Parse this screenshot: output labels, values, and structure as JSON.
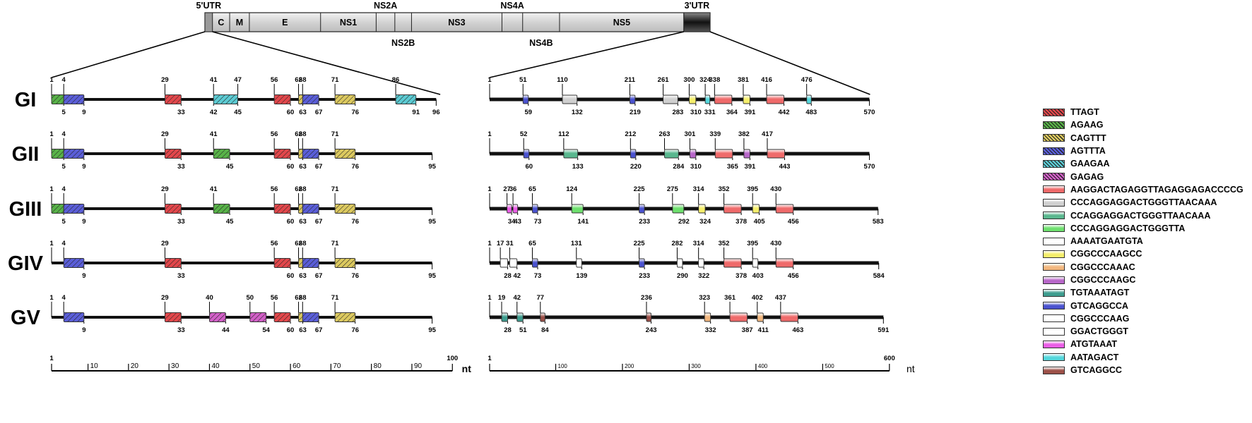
{
  "genome": {
    "utr5_label": "5'UTR",
    "utr3_label": "3'UTR",
    "segments": [
      {
        "name": "C",
        "start": 0.015,
        "end": 0.049
      },
      {
        "name": "M",
        "start": 0.049,
        "end": 0.088
      },
      {
        "name": "E",
        "start": 0.088,
        "end": 0.229
      },
      {
        "name": "NS1",
        "start": 0.229,
        "end": 0.339
      },
      {
        "name": "NS2A",
        "start": 0.339,
        "end": 0.376
      },
      {
        "name": "NS2B",
        "start": 0.376,
        "end": 0.409
      },
      {
        "name": "NS3",
        "start": 0.409,
        "end": 0.588
      },
      {
        "name": "NS4A",
        "start": 0.588,
        "end": 0.629
      },
      {
        "name": "NS4B",
        "start": 0.629,
        "end": 0.702
      },
      {
        "name": "NS5",
        "start": 0.702,
        "end": 0.948
      }
    ]
  },
  "motifs": [
    {
      "id": "TTAGT",
      "label": "TTAGT",
      "color": "#e2474b",
      "hatch": true
    },
    {
      "id": "AGAAG",
      "label": "AGAAG",
      "color": "#58b348",
      "hatch": true
    },
    {
      "id": "CAGTTT",
      "label": "CAGTTT",
      "color": "#dcc95f",
      "hatch": true
    },
    {
      "id": "AGTTTA",
      "label": "AGTTTA",
      "color": "#5a5ed8",
      "hatch": true
    },
    {
      "id": "GAAGAA",
      "label": "GAAGAA",
      "color": "#5ccbd3",
      "hatch": true
    },
    {
      "id": "GAGAG",
      "label": "GAGAG",
      "color": "#d25fc7",
      "hatch": true
    },
    {
      "id": "M1",
      "label": "AAGGACTAGAGGTTAGAGGAGACCCCG",
      "color": "#ef6a6a",
      "hatch": false
    },
    {
      "id": "M2",
      "label": "CCCAGGAGGACTGGGTTAACAAA",
      "color": "#cfcfcf",
      "hatch": false
    },
    {
      "id": "M3",
      "label": "CCAGGAGGACTGGGTTAACAAA",
      "color": "#59b78e",
      "hatch": false
    },
    {
      "id": "M4",
      "label": "CCCAGGAGGACTGGGTTA",
      "color": "#6ee06e",
      "hatch": false
    },
    {
      "id": "M5",
      "label": "AAAATGAATGTA",
      "color": "#ffffff",
      "hatch": false
    },
    {
      "id": "M6",
      "label": "CGGCCCAAGCC",
      "color": "#f5ee6c",
      "hatch": false
    },
    {
      "id": "M7",
      "label": "CGGCCCAAAC",
      "color": "#f2b77e",
      "hatch": false
    },
    {
      "id": "M8",
      "label": "CGGCCCAAGC",
      "color": "#b867c9",
      "hatch": false
    },
    {
      "id": "M9",
      "label": "TGTAAATAGT",
      "color": "#3e9d8f",
      "hatch": false
    },
    {
      "id": "M10",
      "label": "GTCAGGCCA",
      "color": "#4a52cf",
      "hatch": false
    },
    {
      "id": "M11",
      "label": "CGGCCCAAG",
      "color": "#ffffff",
      "hatch": false
    },
    {
      "id": "M12",
      "label": "GGACTGGGT",
      "color": "#ffffff",
      "hatch": false
    },
    {
      "id": "M13",
      "label": "ATGTAAAT",
      "color": "#ea5de6",
      "hatch": false
    },
    {
      "id": "M14",
      "label": "AATAGACT",
      "color": "#54d7dc",
      "hatch": false
    },
    {
      "id": "M15",
      "label": "GTCAGGCC",
      "color": "#9c5048",
      "hatch": false
    }
  ],
  "utr5": {
    "scale_max": 100,
    "rows": [
      {
        "length": 96,
        "end_label": "96",
        "boxes": [
          {
            "s": 1,
            "e": 4,
            "m": "AGAAG",
            "up": "1",
            "down": ""
          },
          {
            "s": 4,
            "e": 9,
            "m": "AGTTTA",
            "up": "4",
            "down": "9",
            "down2": "5"
          },
          {
            "s": 29,
            "e": 33,
            "m": "TTAGT",
            "up": "29",
            "down": "33"
          },
          {
            "s": 41,
            "e": 47,
            "m": "GAAGAA",
            "up": "41",
            "up2": "47",
            "down": "45",
            "down2": "42"
          },
          {
            "s": 56,
            "e": 60,
            "m": "TTAGT",
            "up": "56",
            "down": "60"
          },
          {
            "s": 62,
            "e": 63,
            "m": "CAGTTT",
            "up": "62",
            "down": "63"
          },
          {
            "s": 63,
            "e": 67,
            "m": "AGTTTA",
            "up": "68",
            "down": "67"
          },
          {
            "s": 71,
            "e": 76,
            "m": "CAGTTT",
            "up": "71",
            "down": "76"
          },
          {
            "s": 86,
            "e": 91,
            "m": "GAAGAA",
            "up": "86",
            "down": "91"
          }
        ]
      },
      {
        "length": 95,
        "end_label": "95",
        "boxes": [
          {
            "s": 1,
            "e": 4,
            "m": "AGAAG",
            "up": "1",
            "down": ""
          },
          {
            "s": 4,
            "e": 9,
            "m": "AGTTTA",
            "up": "4",
            "down": "9",
            "down2": "5"
          },
          {
            "s": 29,
            "e": 33,
            "m": "TTAGT",
            "up": "29",
            "down": "33"
          },
          {
            "s": 41,
            "e": 45,
            "m": "AGAAG",
            "up": "41",
            "down": "45"
          },
          {
            "s": 56,
            "e": 60,
            "m": "TTAGT",
            "up": "56",
            "down": "60"
          },
          {
            "s": 62,
            "e": 63,
            "m": "CAGTTT",
            "up": "62",
            "down": "63"
          },
          {
            "s": 63,
            "e": 67,
            "m": "AGTTTA",
            "up": "68",
            "down": "67"
          },
          {
            "s": 71,
            "e": 76,
            "m": "CAGTTT",
            "up": "71",
            "down": "76"
          }
        ]
      },
      {
        "length": 95,
        "end_label": "95",
        "boxes": [
          {
            "s": 1,
            "e": 4,
            "m": "AGAAG",
            "up": "1",
            "down": ""
          },
          {
            "s": 4,
            "e": 9,
            "m": "AGTTTA",
            "up": "4",
            "down": "9",
            "down2": "5"
          },
          {
            "s": 29,
            "e": 33,
            "m": "TTAGT",
            "up": "29",
            "down": "33"
          },
          {
            "s": 41,
            "e": 45,
            "m": "AGAAG",
            "up": "41",
            "down": "45"
          },
          {
            "s": 56,
            "e": 60,
            "m": "TTAGT",
            "up": "56",
            "down": "60"
          },
          {
            "s": 62,
            "e": 63,
            "m": "CAGTTT",
            "up": "62",
            "down": "63"
          },
          {
            "s": 63,
            "e": 67,
            "m": "AGTTTA",
            "up": "68",
            "down": "67"
          },
          {
            "s": 71,
            "e": 76,
            "m": "CAGTTT",
            "up": "71",
            "down": "76"
          }
        ]
      },
      {
        "length": 95,
        "end_label": "95",
        "boxes": [
          {
            "s": 4,
            "e": 9,
            "m": "AGTTTA",
            "up": "4",
            "down": "9"
          },
          {
            "s": 29,
            "e": 33,
            "m": "TTAGT",
            "up": "29",
            "down": "33"
          },
          {
            "s": 56,
            "e": 60,
            "m": "TTAGT",
            "up": "56",
            "down": "60"
          },
          {
            "s": 62,
            "e": 63,
            "m": "CAGTTT",
            "up": "62",
            "down": "63"
          },
          {
            "s": 63,
            "e": 67,
            "m": "AGTTTA",
            "up": "68",
            "down": "67"
          },
          {
            "s": 71,
            "e": 76,
            "m": "CAGTTT",
            "up": "71",
            "down": "76"
          }
        ]
      },
      {
        "length": 95,
        "end_label": "95",
        "boxes": [
          {
            "s": 4,
            "e": 9,
            "m": "AGTTTA",
            "up": "4",
            "down": "9"
          },
          {
            "s": 29,
            "e": 33,
            "m": "TTAGT",
            "up": "29",
            "down": "33"
          },
          {
            "s": 40,
            "e": 44,
            "m": "GAGAG",
            "up": "40",
            "down": "44"
          },
          {
            "s": 50,
            "e": 54,
            "m": "GAGAG",
            "up": "50",
            "down": "54"
          },
          {
            "s": 56,
            "e": 60,
            "m": "TTAGT",
            "up": "56",
            "down": "60"
          },
          {
            "s": 62,
            "e": 63,
            "m": "CAGTTT",
            "up": "62",
            "down": "63"
          },
          {
            "s": 63,
            "e": 67,
            "m": "AGTTTA",
            "up": "68",
            "down": "67"
          },
          {
            "s": 71,
            "e": 76,
            "m": "CAGTTT",
            "up": "71",
            "down": "76"
          }
        ]
      }
    ],
    "axis": {
      "ticks": [
        "1",
        "10",
        "20",
        "30",
        "40",
        "50",
        "60",
        "70",
        "80",
        "90",
        "100"
      ],
      "unit": "nt"
    }
  },
  "utr3": {
    "scale_max": 600,
    "rows": [
      {
        "length": 570,
        "end_label": "570",
        "boxes": [
          {
            "s": 51,
            "e": 59,
            "m": "M10",
            "up": "51",
            "down": "59"
          },
          {
            "s": 110,
            "e": 132,
            "m": "M2",
            "up": "110",
            "down": "132"
          },
          {
            "s": 211,
            "e": 219,
            "m": "M10",
            "up": "211",
            "down": "219"
          },
          {
            "s": 261,
            "e": 283,
            "m": "M2",
            "up": "261",
            "down": "283"
          },
          {
            "s": 300,
            "e": 310,
            "m": "M6",
            "up": "300",
            "down": "310"
          },
          {
            "s": 324,
            "e": 331,
            "m": "M14",
            "up": "324",
            "down": "331"
          },
          {
            "s": 338,
            "e": 364,
            "m": "M1",
            "up": "338",
            "down": "364"
          },
          {
            "s": 381,
            "e": 391,
            "m": "M6",
            "up": "381",
            "down": "391"
          },
          {
            "s": 416,
            "e": 442,
            "m": "M1",
            "up": "416",
            "down": "442"
          },
          {
            "s": 476,
            "e": 483,
            "m": "M14",
            "up": "476",
            "down": "483"
          }
        ]
      },
      {
        "length": 570,
        "end_label": "570",
        "boxes": [
          {
            "s": 52,
            "e": 60,
            "m": "M10",
            "up": "52",
            "down": "60"
          },
          {
            "s": 112,
            "e": 133,
            "m": "M3",
            "up": "112",
            "down": "133"
          },
          {
            "s": 212,
            "e": 220,
            "m": "M10",
            "up": "212",
            "down": "220"
          },
          {
            "s": 263,
            "e": 284,
            "m": "M3",
            "up": "263",
            "down": "284"
          },
          {
            "s": 301,
            "e": 310,
            "m": "M8",
            "up": "301",
            "down": "310"
          },
          {
            "s": 339,
            "e": 365,
            "m": "M1",
            "up": "339",
            "down": "365"
          },
          {
            "s": 382,
            "e": 391,
            "m": "M8",
            "up": "382",
            "down": "391"
          },
          {
            "s": 417,
            "e": 443,
            "m": "M1",
            "up": "417",
            "down": "443"
          }
        ]
      },
      {
        "length": 583,
        "end_label": "583",
        "boxes": [
          {
            "s": 27,
            "e": 34,
            "m": "M13",
            "up": "27",
            "down": "34"
          },
          {
            "s": 36,
            "e": 43,
            "m": "M13",
            "up": "36",
            "down": "43"
          },
          {
            "s": 65,
            "e": 73,
            "m": "M10",
            "up": "65",
            "down": "73"
          },
          {
            "s": 124,
            "e": 141,
            "m": "M4",
            "up": "124",
            "down": "141"
          },
          {
            "s": 225,
            "e": 233,
            "m": "M10",
            "up": "225",
            "down": "233"
          },
          {
            "s": 275,
            "e": 292,
            "m": "M4",
            "up": "275",
            "down": "292"
          },
          {
            "s": 314,
            "e": 324,
            "m": "M6",
            "up": "314",
            "down": "324"
          },
          {
            "s": 352,
            "e": 378,
            "m": "M1",
            "up": "352",
            "down": "378"
          },
          {
            "s": 395,
            "e": 405,
            "m": "M6",
            "up": "395",
            "down": "405"
          },
          {
            "s": 430,
            "e": 456,
            "m": "M1",
            "up": "430",
            "down": "456"
          }
        ]
      },
      {
        "length": 584,
        "end_label": "584",
        "boxes": [
          {
            "s": 17,
            "e": 28,
            "m": "M5",
            "up": "17",
            "down": "28"
          },
          {
            "s": 31,
            "e": 42,
            "m": "M5",
            "up": "31",
            "down": "42"
          },
          {
            "s": 65,
            "e": 73,
            "m": "M10",
            "up": "65",
            "down": "73"
          },
          {
            "s": 131,
            "e": 139,
            "m": "M12",
            "up": "131",
            "down": "139"
          },
          {
            "s": 225,
            "e": 233,
            "m": "M10",
            "up": "225",
            "down": "233"
          },
          {
            "s": 282,
            "e": 290,
            "m": "M12",
            "up": "282",
            "down": "290"
          },
          {
            "s": 314,
            "e": 322,
            "m": "M11",
            "up": "314",
            "down": "322"
          },
          {
            "s": 352,
            "e": 378,
            "m": "M1",
            "up": "352",
            "down": "378"
          },
          {
            "s": 395,
            "e": 403,
            "m": "M11",
            "up": "395",
            "down": "403"
          },
          {
            "s": 430,
            "e": 456,
            "m": "M1",
            "up": "430",
            "down": "456"
          }
        ]
      },
      {
        "length": 591,
        "end_label": "591",
        "boxes": [
          {
            "s": 19,
            "e": 28,
            "m": "M9",
            "up": "19",
            "down": "28"
          },
          {
            "s": 42,
            "e": 51,
            "m": "M9",
            "up": "42",
            "down": "51"
          },
          {
            "s": 77,
            "e": 84,
            "m": "M15",
            "up": "77",
            "down": "84"
          },
          {
            "s": 236,
            "e": 243,
            "m": "M15",
            "up": "236",
            "down": "243"
          },
          {
            "s": 323,
            "e": 332,
            "m": "M7",
            "up": "323",
            "down": "332"
          },
          {
            "s": 361,
            "e": 387,
            "m": "M1",
            "up": "361",
            "down": "387"
          },
          {
            "s": 402,
            "e": 411,
            "m": "M7",
            "up": "402",
            "down": "411"
          },
          {
            "s": 437,
            "e": 463,
            "m": "M1",
            "up": "437",
            "down": "463"
          }
        ]
      }
    ],
    "axis": {
      "ticks": [
        "1",
        "100",
        "200",
        "300",
        "400",
        "500",
        "600"
      ],
      "unit": "nt"
    }
  },
  "genotypes": [
    "GI",
    "GII",
    "GIII",
    "GIV",
    "GV"
  ]
}
